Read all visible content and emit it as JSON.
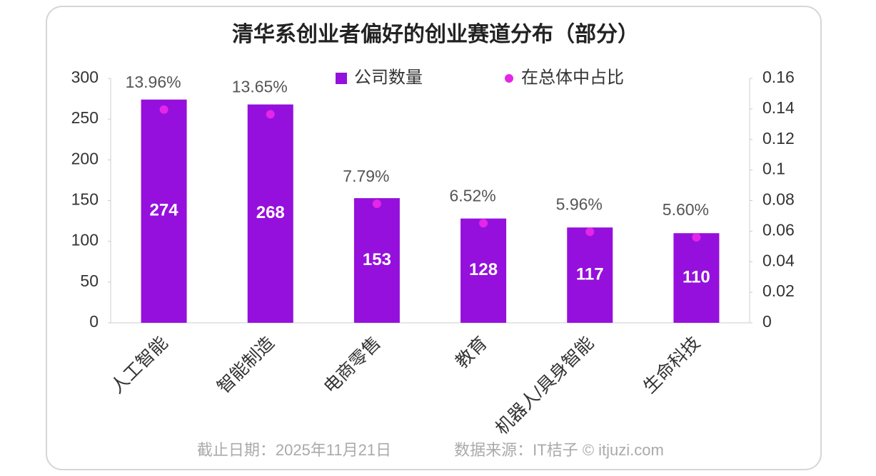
{
  "chart_data": {
    "type": "bar",
    "title": "清华系创业者偏好的创业赛道分布（部分）",
    "categories": [
      "人工智能",
      "智能制造",
      "电商零售",
      "教育",
      "机器人/具身智能",
      "生命科技"
    ],
    "series": [
      {
        "name": "公司数量",
        "type": "bar",
        "color": "#9510dc",
        "values": [
          274,
          268,
          153,
          128,
          117,
          110
        ]
      },
      {
        "name": "在总体中占比",
        "type": "scatter",
        "axis": "y2",
        "color": "#e326e8",
        "values": [
          0.1396,
          0.1365,
          0.0779,
          0.0652,
          0.0596,
          0.056
        ],
        "value_labels": [
          "13.96%",
          "13.65%",
          "7.79%",
          "6.52%",
          "5.96%",
          "5.60%"
        ]
      }
    ],
    "ylim": [
      0,
      300
    ],
    "yticks": [
      0,
      50,
      100,
      150,
      200,
      250,
      300
    ],
    "y2lim": [
      0,
      0.16
    ],
    "y2ticks": [
      0,
      0.02,
      0.04,
      0.06,
      0.08,
      0.1,
      0.12,
      0.14,
      0.16
    ],
    "legend": "top",
    "footnote": [
      "截止日期：2025年11月21日",
      "数据来源：IT桔子 © itjuzi.com"
    ]
  }
}
